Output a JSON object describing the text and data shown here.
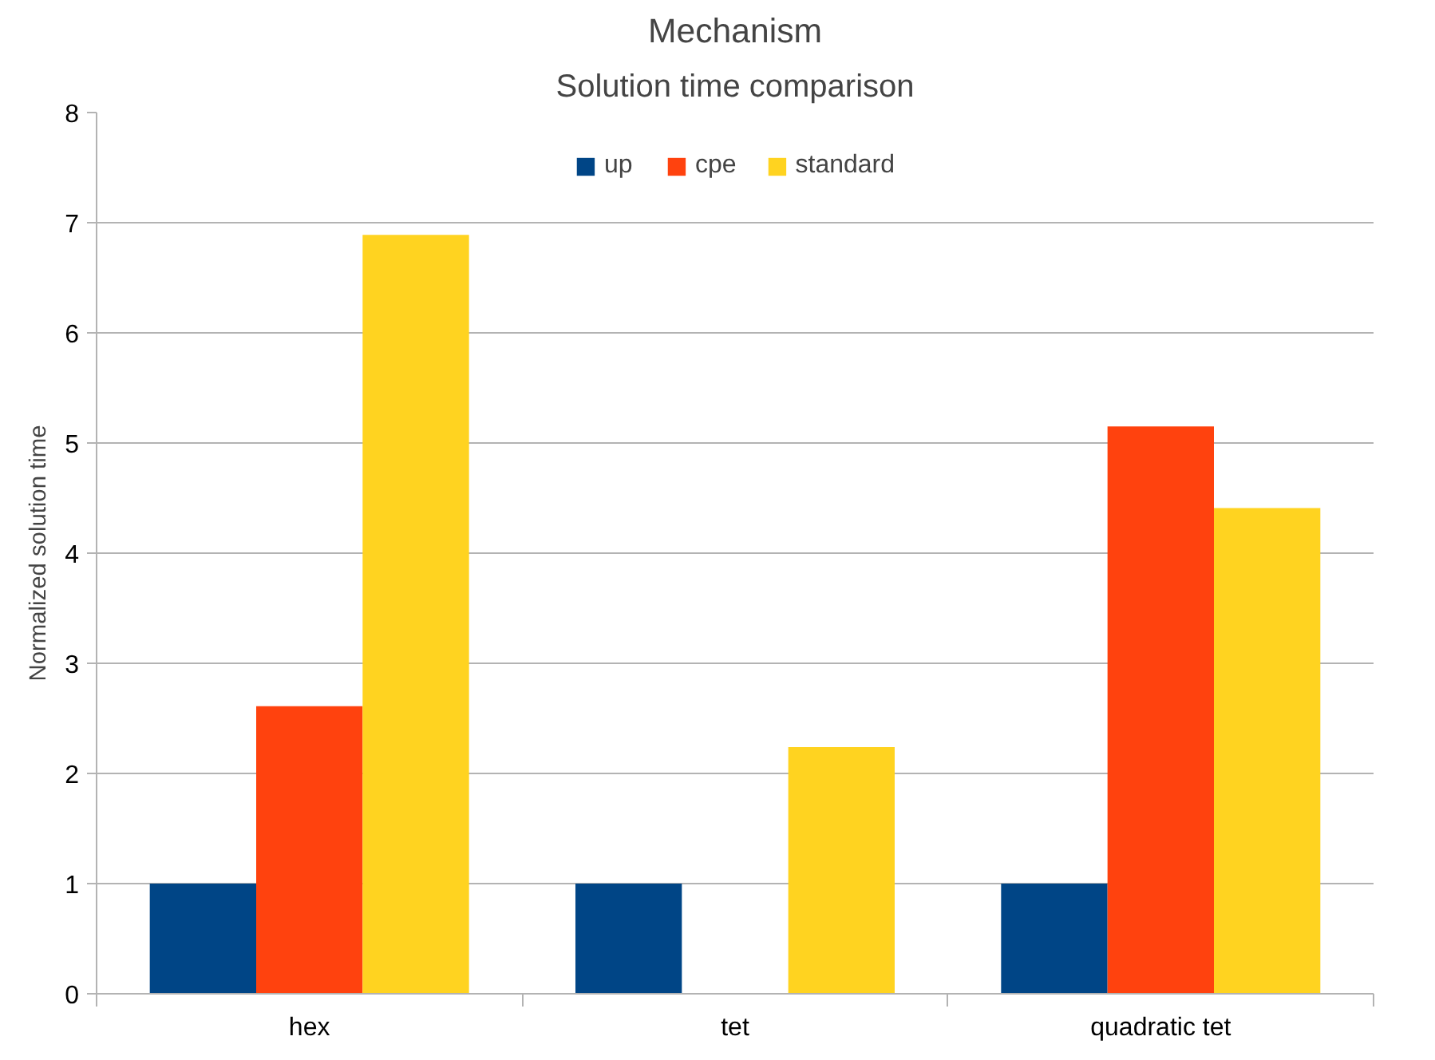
{
  "chart_data": {
    "type": "bar",
    "title": "Mechanism",
    "subtitle": "Solution time comparison",
    "ylabel": "Normalized solution time",
    "categories": [
      "hex",
      "tet",
      "quadratic tet"
    ],
    "series": [
      {
        "name": "up",
        "color": "#004586",
        "values": [
          1,
          1,
          1
        ]
      },
      {
        "name": "cpe",
        "color": "#ff420e",
        "values": [
          2.61,
          null,
          5.15
        ]
      },
      {
        "name": "standard",
        "color": "#ffd320",
        "values": [
          6.89,
          2.24,
          4.41
        ]
      }
    ],
    "ylim": [
      0,
      8
    ],
    "yticks": [
      0,
      1,
      2,
      3,
      4,
      5,
      6,
      7,
      8
    ],
    "grid": "y",
    "legend": "top"
  }
}
